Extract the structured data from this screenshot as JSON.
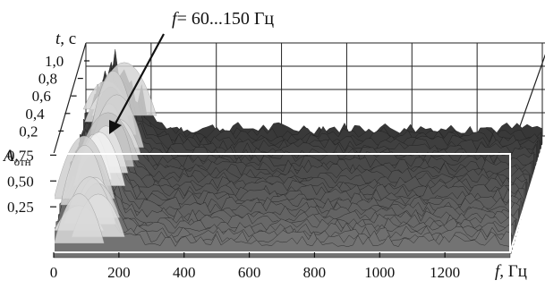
{
  "chart_data": {
    "type": "surface-3d",
    "title": "",
    "annotation": {
      "var": "f",
      "text": "= 60...150 Гц"
    },
    "x_axis": {
      "var": "f",
      "unit": ", Гц",
      "range": [
        0,
        1400
      ],
      "ticks": [
        0,
        200,
        400,
        600,
        800,
        1000,
        1200
      ],
      "tick_labels": [
        "0",
        "200",
        "400",
        "600",
        "800",
        "1000",
        "1200"
      ]
    },
    "depth_axis": {
      "var": "t",
      "unit": ", с",
      "range": [
        0,
        1.0
      ],
      "ticks": [
        0.2,
        0.4,
        0.6,
        0.8,
        1.0
      ],
      "tick_labels": [
        "0,2",
        "0,4",
        "0,6",
        "0,8",
        "1,0"
      ]
    },
    "z_axis": {
      "var": "A",
      "sub": "отн",
      "range": [
        0,
        1.0
      ],
      "ticks": [
        0.25,
        0.5,
        0.75
      ],
      "tick_labels": [
        "0,25",
        "0,50",
        "0,75"
      ]
    },
    "colors": {
      "low": "#333333",
      "high": "#e8e8e8",
      "grid": "#222222",
      "frame": "#ffffff"
    },
    "grid": true
  }
}
